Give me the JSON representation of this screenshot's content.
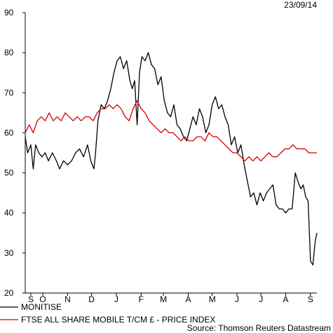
{
  "date_label": "23/09/14",
  "source": "Source: Thomson Reuters Datastream",
  "chart_data": {
    "type": "line",
    "ylim": [
      20,
      90
    ],
    "yticks": [
      20,
      30,
      40,
      50,
      60,
      70,
      80,
      90
    ],
    "grid": false,
    "legend_position": "bottom-left",
    "x_period": {
      "start": "2013-09-23",
      "end": "2014-09-23"
    },
    "xticks": [
      {
        "label": "S",
        "date": "2013-09-30"
      },
      {
        "label": "O",
        "date": "2013-10-15"
      },
      {
        "label": "N",
        "date": "2013-11-15"
      },
      {
        "label": "D",
        "date": "2013-12-15"
      },
      {
        "label": "J",
        "date": "2014-01-15"
      },
      {
        "label": "F",
        "date": "2014-02-15"
      },
      {
        "label": "M",
        "date": "2014-03-15"
      },
      {
        "label": "A",
        "date": "2014-04-15"
      },
      {
        "label": "M",
        "date": "2014-05-15"
      },
      {
        "label": "J",
        "date": "2014-06-15"
      },
      {
        "label": "J",
        "date": "2014-07-15"
      },
      {
        "label": "A",
        "date": "2014-08-15"
      },
      {
        "label": "S",
        "date": "2014-09-15"
      }
    ],
    "series": [
      {
        "name": "MONITISE",
        "color": "#000000",
        "points": [
          [
            "2013-09-23",
            59
          ],
          [
            "2013-09-26",
            55
          ],
          [
            "2013-09-30",
            57
          ],
          [
            "2013-10-03",
            51
          ],
          [
            "2013-10-06",
            57
          ],
          [
            "2013-10-10",
            55
          ],
          [
            "2013-10-14",
            54
          ],
          [
            "2013-10-18",
            55
          ],
          [
            "2013-10-22",
            53
          ],
          [
            "2013-10-27",
            55
          ],
          [
            "2013-11-01",
            53
          ],
          [
            "2013-11-05",
            51
          ],
          [
            "2013-11-10",
            53
          ],
          [
            "2013-11-15",
            52
          ],
          [
            "2013-11-20",
            53
          ],
          [
            "2013-11-25",
            55
          ],
          [
            "2013-11-30",
            56
          ],
          [
            "2013-12-05",
            54
          ],
          [
            "2013-12-10",
            57
          ],
          [
            "2013-12-14",
            53
          ],
          [
            "2013-12-18",
            51
          ],
          [
            "2013-12-20",
            55
          ],
          [
            "2013-12-23",
            63
          ],
          [
            "2013-12-27",
            67
          ],
          [
            "2013-12-31",
            66
          ],
          [
            "2014-01-04",
            68
          ],
          [
            "2014-01-08",
            71
          ],
          [
            "2014-01-12",
            75
          ],
          [
            "2014-01-16",
            78
          ],
          [
            "2014-01-20",
            79
          ],
          [
            "2014-01-24",
            76
          ],
          [
            "2014-01-28",
            78
          ],
          [
            "2014-02-01",
            73
          ],
          [
            "2014-02-04",
            71
          ],
          [
            "2014-02-07",
            73
          ],
          [
            "2014-02-10",
            62
          ],
          [
            "2014-02-13",
            75
          ],
          [
            "2014-02-16",
            79
          ],
          [
            "2014-02-20",
            78
          ],
          [
            "2014-02-24",
            80
          ],
          [
            "2014-02-28",
            77
          ],
          [
            "2014-03-04",
            76
          ],
          [
            "2014-03-08",
            72
          ],
          [
            "2014-03-12",
            74
          ],
          [
            "2014-03-16",
            68
          ],
          [
            "2014-03-20",
            65
          ],
          [
            "2014-03-24",
            64
          ],
          [
            "2014-03-28",
            67
          ],
          [
            "2014-04-01",
            62
          ],
          [
            "2014-04-05",
            61
          ],
          [
            "2014-04-09",
            59
          ],
          [
            "2014-04-13",
            58
          ],
          [
            "2014-04-17",
            61
          ],
          [
            "2014-04-21",
            64
          ],
          [
            "2014-04-25",
            62
          ],
          [
            "2014-04-29",
            66
          ],
          [
            "2014-05-03",
            64
          ],
          [
            "2014-05-07",
            60
          ],
          [
            "2014-05-11",
            62
          ],
          [
            "2014-05-15",
            67
          ],
          [
            "2014-05-19",
            69
          ],
          [
            "2014-05-23",
            66
          ],
          [
            "2014-05-27",
            67
          ],
          [
            "2014-05-31",
            64
          ],
          [
            "2014-06-04",
            62
          ],
          [
            "2014-06-08",
            57
          ],
          [
            "2014-06-12",
            59
          ],
          [
            "2014-06-16",
            55
          ],
          [
            "2014-06-20",
            57
          ],
          [
            "2014-06-24",
            52
          ],
          [
            "2014-06-28",
            48
          ],
          [
            "2014-07-02",
            44
          ],
          [
            "2014-07-06",
            45
          ],
          [
            "2014-07-10",
            42
          ],
          [
            "2014-07-14",
            45
          ],
          [
            "2014-07-18",
            43
          ],
          [
            "2014-07-22",
            45
          ],
          [
            "2014-07-26",
            46
          ],
          [
            "2014-07-30",
            47
          ],
          [
            "2014-08-03",
            42
          ],
          [
            "2014-08-07",
            41
          ],
          [
            "2014-08-11",
            41
          ],
          [
            "2014-08-15",
            40
          ],
          [
            "2014-08-19",
            41
          ],
          [
            "2014-08-23",
            41
          ],
          [
            "2014-08-27",
            50
          ],
          [
            "2014-08-30",
            48
          ],
          [
            "2014-09-03",
            46
          ],
          [
            "2014-09-06",
            47
          ],
          [
            "2014-09-09",
            44
          ],
          [
            "2014-09-12",
            43
          ],
          [
            "2014-09-15",
            28
          ],
          [
            "2014-09-18",
            27
          ],
          [
            "2014-09-21",
            33
          ],
          [
            "2014-09-23",
            35
          ]
        ]
      },
      {
        "name": "FTSE ALL SHARE MOBILE T/CM £ - PRICE INDEX",
        "color": "#d40000",
        "points": [
          [
            "2013-09-23",
            60
          ],
          [
            "2013-09-28",
            62
          ],
          [
            "2013-10-03",
            60
          ],
          [
            "2013-10-08",
            63
          ],
          [
            "2013-10-13",
            64
          ],
          [
            "2013-10-18",
            63
          ],
          [
            "2013-10-23",
            65
          ],
          [
            "2013-10-28",
            63
          ],
          [
            "2013-11-02",
            64
          ],
          [
            "2013-11-07",
            63
          ],
          [
            "2013-11-12",
            65
          ],
          [
            "2013-11-17",
            64
          ],
          [
            "2013-11-22",
            63
          ],
          [
            "2013-11-27",
            64
          ],
          [
            "2013-12-02",
            63
          ],
          [
            "2013-12-07",
            64
          ],
          [
            "2013-12-12",
            64
          ],
          [
            "2013-12-17",
            63
          ],
          [
            "2013-12-22",
            65
          ],
          [
            "2013-12-27",
            66
          ],
          [
            "2014-01-01",
            66
          ],
          [
            "2014-01-06",
            67
          ],
          [
            "2014-01-11",
            66
          ],
          [
            "2014-01-16",
            67
          ],
          [
            "2014-01-21",
            66
          ],
          [
            "2014-01-26",
            64
          ],
          [
            "2014-01-31",
            63
          ],
          [
            "2014-02-05",
            66
          ],
          [
            "2014-02-10",
            68
          ],
          [
            "2014-02-15",
            66
          ],
          [
            "2014-02-20",
            65
          ],
          [
            "2014-02-25",
            63
          ],
          [
            "2014-03-02",
            62
          ],
          [
            "2014-03-07",
            61
          ],
          [
            "2014-03-12",
            60
          ],
          [
            "2014-03-17",
            61
          ],
          [
            "2014-03-22",
            60
          ],
          [
            "2014-03-27",
            60
          ],
          [
            "2014-04-01",
            59
          ],
          [
            "2014-04-06",
            58
          ],
          [
            "2014-04-11",
            59
          ],
          [
            "2014-04-16",
            58
          ],
          [
            "2014-04-21",
            58
          ],
          [
            "2014-04-26",
            59
          ],
          [
            "2014-05-01",
            59
          ],
          [
            "2014-05-06",
            58
          ],
          [
            "2014-05-11",
            60
          ],
          [
            "2014-05-16",
            59
          ],
          [
            "2014-05-21",
            59
          ],
          [
            "2014-05-26",
            58
          ],
          [
            "2014-05-31",
            57
          ],
          [
            "2014-06-05",
            56
          ],
          [
            "2014-06-10",
            55
          ],
          [
            "2014-06-15",
            55
          ],
          [
            "2014-06-20",
            54
          ],
          [
            "2014-06-25",
            53
          ],
          [
            "2014-06-30",
            54
          ],
          [
            "2014-07-05",
            53
          ],
          [
            "2014-07-10",
            54
          ],
          [
            "2014-07-15",
            53
          ],
          [
            "2014-07-20",
            54
          ],
          [
            "2014-07-25",
            55
          ],
          [
            "2014-07-30",
            54
          ],
          [
            "2014-08-04",
            54
          ],
          [
            "2014-08-09",
            55
          ],
          [
            "2014-08-14",
            56
          ],
          [
            "2014-08-19",
            56
          ],
          [
            "2014-08-24",
            57
          ],
          [
            "2014-08-29",
            56
          ],
          [
            "2014-09-03",
            56
          ],
          [
            "2014-09-08",
            56
          ],
          [
            "2014-09-13",
            55
          ],
          [
            "2014-09-18",
            55
          ],
          [
            "2014-09-23",
            55
          ]
        ]
      }
    ]
  }
}
